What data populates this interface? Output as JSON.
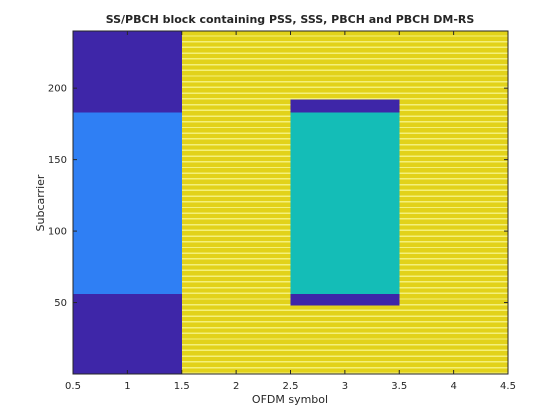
{
  "chart_data": {
    "type": "heatmap",
    "title": "SS/PBCH block containing PSS, SSS, PBCH and PBCH DM-RS",
    "xlabel": "OFDM symbol",
    "ylabel": "Subcarrier",
    "xlim": [
      0.5,
      4.5
    ],
    "ylim": [
      0,
      240
    ],
    "xticks": [
      "0.5",
      "1",
      "1.5",
      "2",
      "2.5",
      "3",
      "3.5",
      "4",
      "4.5"
    ],
    "yticks": [
      "50",
      "100",
      "150",
      "200"
    ],
    "regions": [
      {
        "symbol": 1,
        "subcarriers": [
          0,
          239
        ],
        "signal": "empty",
        "color": "#3e26a8"
      },
      {
        "symbol": 1,
        "subcarriers": [
          56,
          182
        ],
        "signal": "PSS",
        "color": "#2f7ff4"
      },
      {
        "symbol": 3,
        "subcarriers": [
          48,
          191
        ],
        "signal": "empty",
        "color": "#3e26a8"
      },
      {
        "symbol": 3,
        "subcarriers": [
          56,
          182
        ],
        "signal": "SSS",
        "color": "#14bdb7"
      },
      {
        "symbol": 2,
        "subcarriers": [
          0,
          239
        ],
        "signal": "PBCH",
        "color": "#e2d21a"
      },
      {
        "symbol": 3,
        "subcarriers": [
          0,
          47
        ],
        "signal": "PBCH",
        "color": "#e2d21a"
      },
      {
        "symbol": 3,
        "subcarriers": [
          192,
          239
        ],
        "signal": "PBCH",
        "color": "#e2d21a"
      },
      {
        "symbol": 4,
        "subcarriers": [
          0,
          239
        ],
        "signal": "PBCH",
        "color": "#e2d21a"
      }
    ],
    "dmrs": {
      "symbols": [
        2,
        3,
        4
      ],
      "every_nth_subcarrier": 4,
      "offset": 0,
      "color": "#f4f07a"
    },
    "colors": {
      "background": "#ffffff",
      "axis": "#262626"
    }
  }
}
